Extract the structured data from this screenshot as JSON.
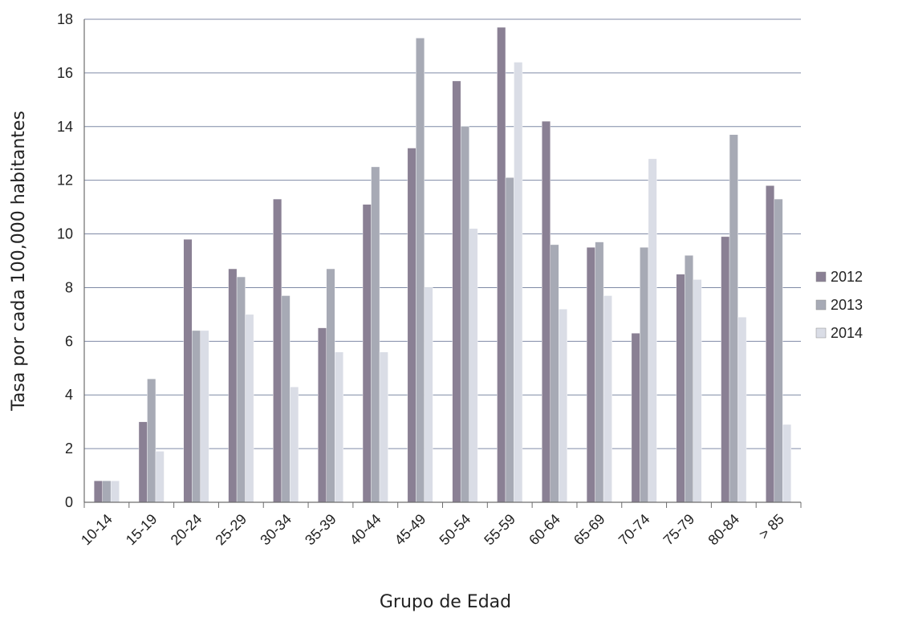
{
  "chart_data": {
    "type": "bar",
    "title": "",
    "xlabel": "Grupo de Edad",
    "ylabel": "Tasa por cada 100,000 habitantes",
    "ylim": [
      0,
      18
    ],
    "yticks": [
      0,
      2,
      4,
      6,
      8,
      10,
      12,
      14,
      16,
      18
    ],
    "grid": true,
    "legend_position": "right",
    "categories": [
      "10-14",
      "15-19",
      "20-24",
      "25-29",
      "30-34",
      "35-39",
      "40-44",
      "45-49",
      "50-54",
      "55-59",
      "60-64",
      "65-69",
      "70-74",
      "75-79",
      "80-84",
      "> 85"
    ],
    "series": [
      {
        "name": "2012",
        "color": "#8a8094",
        "values": [
          0.8,
          3.0,
          9.8,
          8.7,
          11.3,
          6.5,
          11.1,
          13.2,
          15.7,
          17.7,
          14.2,
          9.5,
          6.3,
          8.5,
          9.9,
          11.8
        ]
      },
      {
        "name": "2013",
        "color": "#a7aab5",
        "values": [
          0.8,
          4.6,
          6.4,
          8.4,
          7.7,
          8.7,
          12.5,
          17.3,
          14.0,
          12.1,
          9.6,
          9.7,
          9.5,
          9.2,
          13.7,
          11.3
        ]
      },
      {
        "name": "2014",
        "color": "#dadde6",
        "values": [
          0.8,
          1.9,
          6.4,
          7.0,
          4.3,
          5.6,
          5.6,
          8.0,
          10.2,
          16.4,
          7.2,
          7.7,
          12.8,
          8.3,
          6.9,
          2.9
        ]
      }
    ]
  }
}
